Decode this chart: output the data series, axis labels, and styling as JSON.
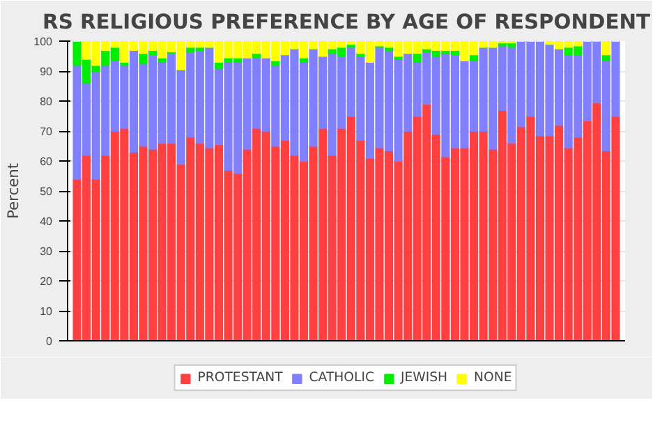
{
  "chart_data": {
    "type": "bar",
    "stacked": true,
    "title": "RS RELIGIOUS PREFERENCE BY AGE OF RESPONDENT",
    "ylabel": "Percent",
    "categories": [
      null,
      null,
      null,
      null,
      null,
      null,
      null,
      null,
      null,
      null,
      null,
      null,
      null,
      null,
      null,
      null,
      null,
      null,
      null,
      null,
      null,
      null,
      null,
      null,
      null,
      null,
      null,
      null,
      null,
      null,
      null,
      null,
      null,
      null,
      null,
      null,
      null,
      null,
      null,
      null,
      null,
      null,
      null,
      null,
      null,
      null,
      null,
      null,
      null,
      null,
      null,
      null,
      null,
      null,
      null,
      null,
      null,
      null
    ],
    "ylim": [
      0,
      100
    ],
    "yticks": [
      0,
      10,
      20,
      30,
      40,
      50,
      60,
      70,
      80,
      90,
      100
    ],
    "grid": "y",
    "legend": "bottom",
    "series": [
      {
        "name": "PROTESTANT",
        "color": "#ff4040",
        "values": [
          54,
          62,
          54,
          62,
          70,
          71,
          63,
          65,
          64,
          66,
          66,
          59,
          68,
          66,
          64.5,
          65.5,
          57,
          56,
          64,
          71,
          70,
          65,
          67,
          62,
          60,
          65,
          71,
          62,
          71,
          75,
          67,
          61,
          64.5,
          63.5,
          60,
          70,
          75,
          79,
          69,
          61.5,
          64.5,
          64.5,
          70,
          70,
          64,
          77,
          66,
          71.5,
          75,
          68.5,
          68.5,
          72,
          64.5,
          68,
          73.5,
          79.5,
          63.5,
          75
        ]
      },
      {
        "name": "CATHOLIC",
        "color": "#8080ff",
        "values": [
          38,
          24,
          36,
          30,
          23.5,
          21,
          34,
          27.5,
          31.5,
          27,
          30,
          31.5,
          28.5,
          31,
          33.5,
          25.5,
          36,
          37,
          30.5,
          23.5,
          24.5,
          27,
          28.5,
          35.5,
          33,
          32.5,
          24,
          34,
          24,
          23,
          28,
          32,
          33.5,
          33.5,
          34,
          26,
          18,
          17.5,
          26,
          34.5,
          31,
          29,
          23.5,
          28,
          34,
          21.5,
          32,
          28.5,
          25,
          31.5,
          30.5,
          25.5,
          31,
          27.5,
          26.5,
          20.5,
          30,
          25
        ]
      },
      {
        "name": "JEWISH",
        "color": "#00ee00",
        "values": [
          8,
          8,
          2,
          5,
          4.5,
          1,
          0,
          3.5,
          1.5,
          1.5,
          0.5,
          0,
          1.5,
          1,
          0,
          2,
          1.5,
          1.5,
          0,
          1.5,
          0,
          1.5,
          0,
          0,
          1.5,
          0,
          0,
          1.5,
          3,
          1,
          1,
          0,
          0.5,
          1,
          1,
          0,
          3,
          1,
          2,
          1,
          1.5,
          0,
          2,
          0,
          0,
          1,
          1.5,
          0,
          0,
          0,
          0,
          0,
          2.5,
          3,
          0,
          0,
          2,
          0
        ]
      },
      {
        "name": "NONE",
        "color": "#ffff00",
        "values": [
          0,
          6,
          8,
          3,
          2,
          7,
          3,
          4,
          3,
          5.5,
          3.5,
          9.5,
          2,
          2,
          2,
          7,
          5.5,
          5.5,
          5.5,
          4,
          5.5,
          6.5,
          4.5,
          2.5,
          5.5,
          2.5,
          5,
          2.5,
          2,
          1,
          4,
          7,
          1.5,
          2,
          5,
          4,
          4,
          2.5,
          3,
          3,
          3,
          6.5,
          4.5,
          2,
          2,
          0.5,
          0.5,
          0,
          0,
          0,
          1,
          2.5,
          2,
          1.5,
          0,
          0,
          4.5,
          0
        ]
      }
    ]
  }
}
